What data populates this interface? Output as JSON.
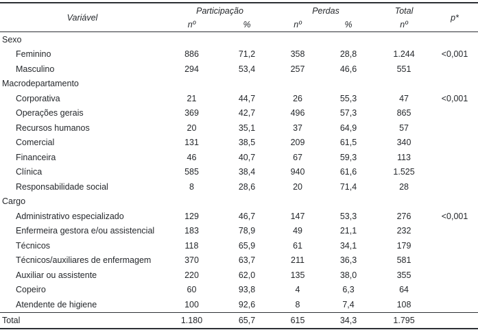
{
  "colors": {
    "text": "#24272b",
    "rule": "#2b2e33",
    "background": "#ffffff"
  },
  "table": {
    "header": {
      "variavel": "Variável",
      "participacao": "Participação",
      "perdas": "Perdas",
      "total": "Total",
      "n_label": "nº",
      "pct_label": "%",
      "p_label": "p*"
    },
    "rows": [
      {
        "t": "section",
        "label": "Sexo",
        "v": [
          "",
          "",
          "",
          "",
          "",
          ""
        ]
      },
      {
        "t": "data",
        "label": "Feminino",
        "v": [
          "886",
          "71,2",
          "358",
          "28,8",
          "1.244",
          "<0,001"
        ]
      },
      {
        "t": "data",
        "label": "Masculino",
        "v": [
          "294",
          "53,4",
          "257",
          "46,6",
          "551",
          ""
        ]
      },
      {
        "t": "section",
        "label": "Macrodepartamento",
        "v": [
          "",
          "",
          "",
          "",
          "",
          ""
        ]
      },
      {
        "t": "data",
        "label": "Corporativa",
        "v": [
          "21",
          "44,7",
          "26",
          "55,3",
          "47",
          "<0,001"
        ]
      },
      {
        "t": "data",
        "label": "Operações gerais",
        "v": [
          "369",
          "42,7",
          "496",
          "57,3",
          "865",
          ""
        ]
      },
      {
        "t": "data",
        "label": "Recursos humanos",
        "v": [
          "20",
          "35,1",
          "37",
          "64,9",
          "57",
          ""
        ]
      },
      {
        "t": "data",
        "label": "Comercial",
        "v": [
          "131",
          "38,5",
          "209",
          "61,5",
          "340",
          ""
        ]
      },
      {
        "t": "data",
        "label": "Financeira",
        "v": [
          "46",
          "40,7",
          "67",
          "59,3",
          "113",
          ""
        ]
      },
      {
        "t": "data",
        "label": "Clínica",
        "v": [
          "585",
          "38,4",
          "940",
          "61,6",
          "1.525",
          ""
        ]
      },
      {
        "t": "data",
        "label": "Responsabilidade social",
        "v": [
          "8",
          "28,6",
          "20",
          "71,4",
          "28",
          ""
        ]
      },
      {
        "t": "section",
        "label": "Cargo",
        "v": [
          "",
          "",
          "",
          "",
          "",
          ""
        ]
      },
      {
        "t": "data",
        "label": "Administrativo especializado",
        "v": [
          "129",
          "46,7",
          "147",
          "53,3",
          "276",
          "<0,001"
        ]
      },
      {
        "t": "data",
        "label": "Enfermeira gestora e/ou assistencial",
        "v": [
          "183",
          "78,9",
          "49",
          "21,1",
          "232",
          ""
        ]
      },
      {
        "t": "data",
        "label": "Técnicos",
        "v": [
          "118",
          "65,9",
          "61",
          "34,1",
          "179",
          ""
        ]
      },
      {
        "t": "data",
        "label": "Técnicos/auxiliares de enfermagem",
        "v": [
          "370",
          "63,7",
          "211",
          "36,3",
          "581",
          ""
        ]
      },
      {
        "t": "data",
        "label": "Auxiliar ou assistente",
        "v": [
          "220",
          "62,0",
          "135",
          "38,0",
          "355",
          ""
        ]
      },
      {
        "t": "data",
        "label": "Copeiro",
        "v": [
          "60",
          "93,8",
          "4",
          "6,3",
          "64",
          ""
        ]
      },
      {
        "t": "data",
        "label": "Atendente de higiene",
        "v": [
          "100",
          "92,6",
          "8",
          "7,4",
          "108",
          ""
        ]
      },
      {
        "t": "total",
        "label": "Total",
        "v": [
          "1.180",
          "65,7",
          "615",
          "34,3",
          "1.795",
          ""
        ]
      }
    ]
  }
}
